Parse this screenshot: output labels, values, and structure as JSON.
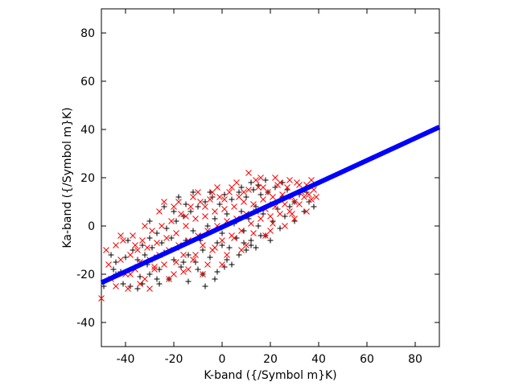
{
  "chart_data": {
    "type": "scatter",
    "title": "",
    "xlabel": "K-band ({/Symbol m}K)",
    "ylabel": "Ka-band ({/Symbol m}K)",
    "xlim": [
      -50,
      90
    ],
    "ylim": [
      -50,
      90
    ],
    "xticks": [
      -40,
      -20,
      0,
      20,
      40,
      60,
      80
    ],
    "yticks": [
      -40,
      -20,
      0,
      20,
      40,
      60,
      80
    ],
    "grid": false,
    "legend": "none",
    "series": [
      {
        "marker": "plus",
        "color": "#000000",
        "points": [
          [
            -49,
            -25
          ],
          [
            -47,
            -22
          ],
          [
            -45,
            -18
          ],
          [
            -44,
            -15
          ],
          [
            -42,
            -19
          ],
          [
            -40,
            -13
          ],
          [
            -38,
            -25
          ],
          [
            -37,
            -10
          ],
          [
            -36,
            -17
          ],
          [
            -35,
            -14
          ],
          [
            -34,
            -21
          ],
          [
            -33,
            -8
          ],
          [
            -32,
            -12
          ],
          [
            -31,
            -16
          ],
          [
            -30,
            -5
          ],
          [
            -30,
            -20
          ],
          [
            -29,
            -9
          ],
          [
            -28,
            -13
          ],
          [
            -27,
            -3
          ],
          [
            -26,
            -18
          ],
          [
            -25,
            -7
          ],
          [
            -24,
            -11
          ],
          [
            -23,
            -1
          ],
          [
            -22,
            -22
          ],
          [
            -21,
            -5
          ],
          [
            -20,
            -14
          ],
          [
            -19,
            2
          ],
          [
            -18,
            -9
          ],
          [
            -17,
            -17
          ],
          [
            -16,
            4
          ],
          [
            -15,
            -6
          ],
          [
            -14,
            -12
          ],
          [
            -13,
            6
          ],
          [
            -12,
            -2
          ],
          [
            -11,
            -15
          ],
          [
            -10,
            8
          ],
          [
            -9,
            -4
          ],
          [
            -8,
            -10
          ],
          [
            -7,
            10
          ],
          [
            -6,
            0
          ],
          [
            -5,
            -13
          ],
          [
            -4,
            12
          ],
          [
            -3,
            3
          ],
          [
            -2,
            -7
          ],
          [
            -1,
            9
          ],
          [
            0,
            -3
          ],
          [
            1,
            13
          ],
          [
            2,
            5
          ],
          [
            3,
            -9
          ],
          [
            4,
            11
          ],
          [
            5,
            1
          ],
          [
            6,
            -5
          ],
          [
            7,
            14
          ],
          [
            8,
            6
          ],
          [
            9,
            -2
          ],
          [
            10,
            12
          ],
          [
            11,
            3
          ],
          [
            12,
            -8
          ],
          [
            13,
            15
          ],
          [
            14,
            8
          ],
          [
            15,
            0
          ],
          [
            16,
            13
          ],
          [
            17,
            5
          ],
          [
            18,
            -4
          ],
          [
            19,
            14
          ],
          [
            20,
            9
          ],
          [
            21,
            2
          ],
          [
            22,
            16
          ],
          [
            23,
            7
          ],
          [
            24,
            -1
          ],
          [
            25,
            12
          ],
          [
            26,
            4
          ],
          [
            27,
            15
          ],
          [
            28,
            8
          ],
          [
            30,
            10
          ],
          [
            32,
            13
          ],
          [
            34,
            6
          ],
          [
            35,
            14
          ],
          [
            36,
            10
          ],
          [
            -46,
            -12
          ],
          [
            -41,
            -24
          ],
          [
            -39,
            -6
          ],
          [
            -26,
            -24
          ],
          [
            -20,
            6
          ],
          [
            -10,
            -18
          ],
          [
            2,
            -14
          ],
          [
            8,
            16
          ],
          [
            15,
            17
          ],
          [
            20,
            -6
          ],
          [
            25,
            18
          ],
          [
            -15,
            9
          ],
          [
            -5,
            14
          ],
          [
            -30,
            2
          ],
          [
            -8,
            -20
          ],
          [
            12,
            18
          ],
          [
            -35,
            -26
          ],
          [
            4,
            -16
          ],
          [
            -18,
            12
          ],
          [
            30,
            2
          ],
          [
            38,
            8
          ],
          [
            -3,
            -22
          ],
          [
            18,
            19
          ],
          [
            -24,
            8
          ],
          [
            -12,
            14
          ],
          [
            -44,
            -20
          ],
          [
            -7,
            -25
          ],
          [
            -14,
            -23
          ],
          [
            -2,
            -19
          ],
          [
            7,
            -12
          ],
          [
            -27,
            -22
          ],
          [
            -33,
            -24
          ],
          [
            10,
            -10
          ],
          [
            0,
            -8
          ],
          [
            9,
            -7
          ],
          [
            12,
            -6
          ],
          [
            14,
            -9
          ],
          [
            -9,
            -6
          ],
          [
            -16,
            -15
          ],
          [
            16,
            -4
          ],
          [
            1,
            -17
          ]
        ]
      },
      {
        "marker": "cross",
        "color": "#ff0000",
        "points": [
          [
            -50,
            -30
          ],
          [
            -48,
            -10
          ],
          [
            -46,
            -22
          ],
          [
            -44,
            -8
          ],
          [
            -42,
            -14
          ],
          [
            -40,
            -20
          ],
          [
            -39,
            -26
          ],
          [
            -38,
            -12
          ],
          [
            -37,
            -4
          ],
          [
            -36,
            -18
          ],
          [
            -35,
            -10
          ],
          [
            -34,
            -15
          ],
          [
            -33,
            -6
          ],
          [
            -32,
            -22
          ],
          [
            -31,
            -9
          ],
          [
            -30,
            -14
          ],
          [
            -29,
            -2
          ],
          [
            -28,
            -18
          ],
          [
            -27,
            -7
          ],
          [
            -26,
            -12
          ],
          [
            -25,
            0
          ],
          [
            -24,
            -16
          ],
          [
            -23,
            -5
          ],
          [
            -22,
            -10
          ],
          [
            -21,
            2
          ],
          [
            -20,
            -20
          ],
          [
            -19,
            -3
          ],
          [
            -18,
            -8
          ],
          [
            -17,
            5
          ],
          [
            -16,
            -12
          ],
          [
            -15,
            0
          ],
          [
            -14,
            -6
          ],
          [
            -13,
            8
          ],
          [
            -12,
            -14
          ],
          [
            -11,
            3
          ],
          [
            -10,
            -4
          ],
          [
            -9,
            10
          ],
          [
            -8,
            -8
          ],
          [
            -7,
            4
          ],
          [
            -6,
            -2
          ],
          [
            -5,
            11
          ],
          [
            -4,
            -10
          ],
          [
            -3,
            6
          ],
          [
            -2,
            0
          ],
          [
            -1,
            12
          ],
          [
            0,
            -6
          ],
          [
            1,
            7
          ],
          [
            2,
            2
          ],
          [
            3,
            14
          ],
          [
            4,
            -4
          ],
          [
            5,
            8
          ],
          [
            6,
            3
          ],
          [
            7,
            12
          ],
          [
            8,
            -2
          ],
          [
            9,
            10
          ],
          [
            10,
            5
          ],
          [
            11,
            15
          ],
          [
            12,
            1
          ],
          [
            13,
            9
          ],
          [
            14,
            6
          ],
          [
            15,
            16
          ],
          [
            16,
            3
          ],
          [
            17,
            11
          ],
          [
            18,
            7
          ],
          [
            19,
            14
          ],
          [
            20,
            4
          ],
          [
            21,
            12
          ],
          [
            22,
            8
          ],
          [
            23,
            17
          ],
          [
            24,
            5
          ],
          [
            25,
            13
          ],
          [
            26,
            9
          ],
          [
            27,
            16
          ],
          [
            28,
            6
          ],
          [
            29,
            12
          ],
          [
            30,
            10
          ],
          [
            31,
            18
          ],
          [
            32,
            9
          ],
          [
            33,
            14
          ],
          [
            34,
            12
          ],
          [
            35,
            17
          ],
          [
            36,
            13
          ],
          [
            37,
            11
          ],
          [
            38,
            15
          ],
          [
            39,
            12
          ],
          [
            -47,
            -16
          ],
          [
            -41,
            -6
          ],
          [
            -34,
            -24
          ],
          [
            -26,
            6
          ],
          [
            -22,
            -22
          ],
          [
            -18,
            10
          ],
          [
            -14,
            -18
          ],
          [
            -10,
            14
          ],
          [
            -6,
            -16
          ],
          [
            -2,
            16
          ],
          [
            2,
            -12
          ],
          [
            6,
            18
          ],
          [
            10,
            -8
          ],
          [
            14,
            19
          ],
          [
            18,
            -4
          ],
          [
            22,
            20
          ],
          [
            26,
            0
          ],
          [
            11,
            22
          ],
          [
            -38,
            -20
          ],
          [
            -30,
            -26
          ],
          [
            -20,
            8
          ],
          [
            -12,
            12
          ],
          [
            -4,
            14
          ],
          [
            4,
            16
          ],
          [
            16,
            20
          ],
          [
            28,
            19
          ],
          [
            -44,
            -25
          ],
          [
            -32,
            0
          ],
          [
            -24,
            10
          ],
          [
            -8,
            -20
          ],
          [
            0,
            -16
          ],
          [
            8,
            -10
          ],
          [
            20,
            -2
          ],
          [
            -16,
            -19
          ],
          [
            -28,
            -17
          ],
          [
            30,
            3
          ],
          [
            35,
            6
          ],
          [
            -42,
            -4
          ],
          [
            -36,
            -8
          ],
          [
            -19,
            -15
          ],
          [
            -11,
            -12
          ],
          [
            -3,
            -9
          ],
          [
            5,
            -5
          ],
          [
            13,
            -3
          ],
          [
            21,
            1
          ],
          [
            29,
            5
          ],
          [
            -15,
            4
          ],
          [
            -7,
            8
          ],
          [
            1,
            11
          ],
          [
            9,
            14
          ],
          [
            17,
            16
          ],
          [
            24,
            18
          ],
          [
            32,
            17
          ],
          [
            37,
            19
          ]
        ]
      },
      {
        "marker": "line",
        "color": "#0000ff",
        "points": [
          [
            -50,
            -23.5
          ],
          [
            90,
            41
          ]
        ]
      }
    ]
  }
}
